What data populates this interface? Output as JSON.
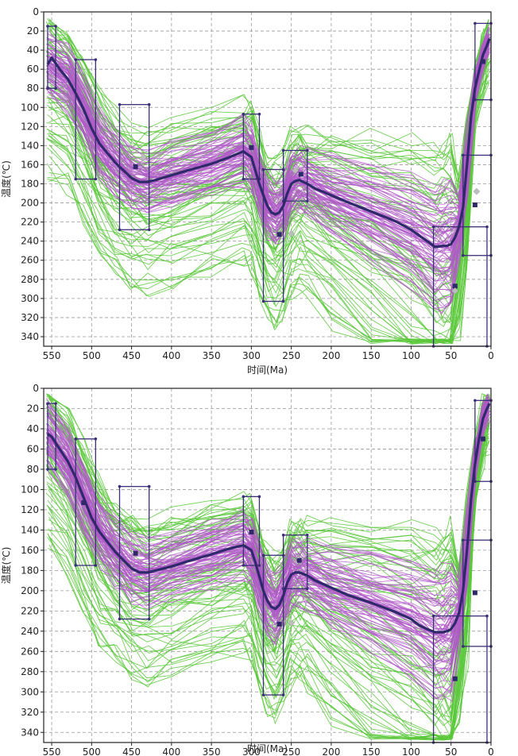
{
  "colors": {
    "green": "#59c83a",
    "purple": "#b05ac8",
    "mean": "#2e2a6a",
    "box": "#3b2f78",
    "grid": "#999999"
  },
  "chart_data": [
    {
      "type": "line",
      "xlabel": "时间(Ma)",
      "ylabel": "温度(℃)",
      "xlim": [
        560,
        0
      ],
      "ylim": [
        0,
        350
      ],
      "x_reversed": true,
      "y_reversed": true,
      "xticks": [
        "550",
        "500",
        "450",
        "400",
        "350",
        "300",
        "250",
        "200",
        "150",
        "100",
        "50",
        "0"
      ],
      "yticks": [
        "0",
        "20",
        "40",
        "60",
        "80",
        "100",
        "120",
        "140",
        "160",
        "180",
        "200",
        "220",
        "240",
        "260",
        "280",
        "300",
        "320",
        "340"
      ],
      "grid": true,
      "constraint_boxes": [
        {
          "t": [
            555,
            545
          ],
          "temp": [
            15,
            80
          ]
        },
        {
          "t": [
            520,
            495
          ],
          "temp": [
            50,
            175
          ]
        },
        {
          "t": [
            465,
            428
          ],
          "temp": [
            97,
            228
          ]
        },
        {
          "t": [
            310,
            290
          ],
          "temp": [
            107,
            175
          ]
        },
        {
          "t": [
            285,
            260
          ],
          "temp": [
            165,
            303
          ]
        },
        {
          "t": [
            260,
            230
          ],
          "temp": [
            145,
            198
          ]
        },
        {
          "t": [
            72,
            5
          ],
          "temp": [
            225,
            350
          ]
        },
        {
          "t": [
            35,
            0
          ],
          "temp": [
            150,
            255
          ]
        },
        {
          "t": [
            20,
            0
          ],
          "temp": [
            12,
            92
          ]
        }
      ],
      "mean_path": {
        "x": [
          555,
          550,
          540,
          530,
          520,
          510,
          500,
          490,
          480,
          470,
          460,
          450,
          440,
          430,
          420,
          400,
          380,
          350,
          330,
          310,
          300,
          295,
          290,
          285,
          280,
          275,
          270,
          265,
          260,
          255,
          250,
          245,
          240,
          230,
          220,
          200,
          180,
          150,
          120,
          100,
          90,
          80,
          70,
          60,
          55,
          50,
          45,
          40,
          35,
          30,
          25,
          20,
          15,
          10,
          5,
          2
        ],
        "y": [
          55,
          48,
          60,
          70,
          85,
          102,
          122,
          138,
          148,
          158,
          166,
          174,
          178,
          178,
          176,
          171,
          166,
          159,
          153,
          146,
          152,
          166,
          180,
          192,
          203,
          210,
          212,
          210,
          203,
          190,
          180,
          177,
          176,
          180,
          185,
          192,
          199,
          209,
          219,
          228,
          234,
          240,
          246,
          245,
          245,
          243,
          236,
          225,
          205,
          160,
          110,
          80,
          62,
          45,
          35,
          28
        ]
      },
      "ensemble_x": [
        555,
        530,
        510,
        490,
        470,
        450,
        430,
        400,
        350,
        310,
        300,
        290,
        280,
        270,
        260,
        250,
        240,
        230,
        200,
        150,
        100,
        70,
        60,
        50,
        40,
        30,
        20,
        10,
        3
      ],
      "good_offsets": [
        -28,
        -20,
        -14,
        -9,
        -5,
        -2,
        0,
        2,
        5,
        9,
        14,
        20,
        28
      ],
      "acceptable_offsets": [
        -45,
        -36,
        -26,
        -12,
        10,
        22,
        32,
        44,
        60,
        82,
        105
      ],
      "plotted_points": [
        {
          "x": 445,
          "y": 162,
          "style": "square"
        },
        {
          "x": 435,
          "y": 152,
          "style": "diamond"
        },
        {
          "x": 300,
          "y": 142,
          "style": "square"
        },
        {
          "x": 265,
          "y": 233,
          "style": "square"
        },
        {
          "x": 250,
          "y": 232,
          "style": "diamond"
        },
        {
          "x": 245,
          "y": 166,
          "style": "diamond"
        },
        {
          "x": 238,
          "y": 170,
          "style": "square"
        },
        {
          "x": 45,
          "y": 287,
          "style": "square"
        },
        {
          "x": 45,
          "y": 292,
          "style": "diamond"
        },
        {
          "x": 20,
          "y": 202,
          "style": "square"
        },
        {
          "x": 18,
          "y": 188,
          "style": "diamond"
        },
        {
          "x": 10,
          "y": 52,
          "style": "square"
        }
      ]
    },
    {
      "type": "line",
      "xlabel": "时间(Ma)",
      "ylabel": "温度(℃)",
      "xlim": [
        560,
        0
      ],
      "ylim": [
        0,
        350
      ],
      "x_reversed": true,
      "y_reversed": true,
      "xticks": [
        "550",
        "500",
        "450",
        "400",
        "350",
        "300",
        "250",
        "200",
        "150",
        "100",
        "50",
        "0"
      ],
      "yticks": [
        "0",
        "20",
        "40",
        "60",
        "80",
        "100",
        "120",
        "140",
        "160",
        "180",
        "200",
        "220",
        "240",
        "260",
        "280",
        "300",
        "320",
        "340"
      ],
      "grid": true,
      "constraint_boxes": [
        {
          "t": [
            555,
            545
          ],
          "temp": [
            15,
            80
          ]
        },
        {
          "t": [
            520,
            495
          ],
          "temp": [
            50,
            175
          ]
        },
        {
          "t": [
            465,
            428
          ],
          "temp": [
            97,
            228
          ]
        },
        {
          "t": [
            310,
            290
          ],
          "temp": [
            107,
            175
          ]
        },
        {
          "t": [
            285,
            260
          ],
          "temp": [
            165,
            303
          ]
        },
        {
          "t": [
            260,
            230
          ],
          "temp": [
            145,
            198
          ]
        },
        {
          "t": [
            72,
            5
          ],
          "temp": [
            225,
            350
          ]
        },
        {
          "t": [
            35,
            0
          ],
          "temp": [
            150,
            255
          ]
        },
        {
          "t": [
            20,
            0
          ],
          "temp": [
            12,
            92
          ]
        }
      ],
      "mean_path": {
        "x": [
          555,
          550,
          540,
          530,
          520,
          510,
          500,
          490,
          480,
          470,
          460,
          450,
          440,
          430,
          420,
          400,
          380,
          350,
          330,
          310,
          300,
          295,
          290,
          285,
          280,
          275,
          270,
          265,
          260,
          255,
          250,
          245,
          240,
          230,
          220,
          200,
          180,
          150,
          120,
          100,
          90,
          80,
          70,
          60,
          55,
          50,
          45,
          40,
          35,
          30,
          25,
          20,
          15,
          10,
          5,
          2
        ],
        "y": [
          45,
          48,
          60,
          72,
          88,
          108,
          128,
          142,
          152,
          162,
          170,
          178,
          182,
          182,
          180,
          176,
          171,
          164,
          159,
          155,
          160,
          172,
          186,
          200,
          210,
          216,
          218,
          214,
          205,
          192,
          184,
          182,
          182,
          185,
          190,
          197,
          204,
          212,
          221,
          228,
          234,
          238,
          241,
          241,
          240,
          238,
          232,
          222,
          200,
          160,
          110,
          75,
          50,
          30,
          20,
          15
        ]
      },
      "ensemble_x": [
        555,
        530,
        510,
        490,
        470,
        450,
        430,
        400,
        350,
        310,
        300,
        290,
        280,
        270,
        260,
        250,
        240,
        230,
        200,
        150,
        100,
        70,
        60,
        50,
        40,
        30,
        20,
        10,
        3
      ],
      "good_offsets": [
        -28,
        -20,
        -14,
        -9,
        -5,
        -2,
        0,
        2,
        5,
        9,
        14,
        20,
        28
      ],
      "acceptable_offsets": [
        -45,
        -36,
        -26,
        -12,
        10,
        22,
        32,
        44,
        60,
        82,
        105
      ],
      "plotted_points": [
        {
          "x": 510,
          "y": 113,
          "style": "square"
        },
        {
          "x": 445,
          "y": 163,
          "style": "square"
        },
        {
          "x": 300,
          "y": 142,
          "style": "square"
        },
        {
          "x": 265,
          "y": 233,
          "style": "square"
        },
        {
          "x": 250,
          "y": 232,
          "style": "diamond"
        },
        {
          "x": 240,
          "y": 170,
          "style": "square"
        },
        {
          "x": 45,
          "y": 287,
          "style": "square"
        },
        {
          "x": 20,
          "y": 202,
          "style": "square"
        },
        {
          "x": 10,
          "y": 50,
          "style": "square"
        }
      ]
    }
  ]
}
